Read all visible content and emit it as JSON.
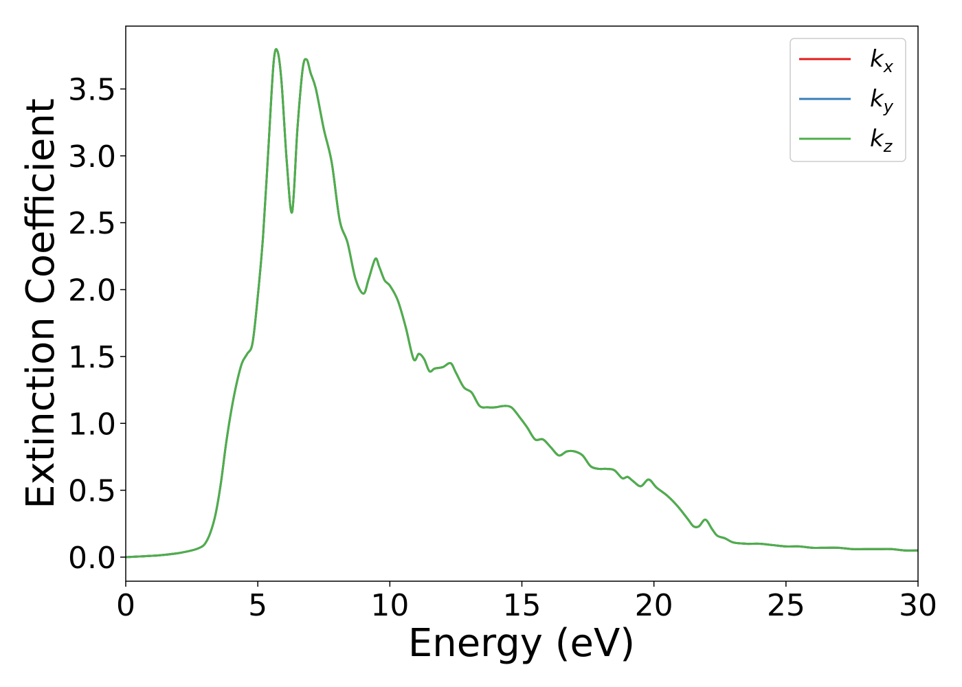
{
  "chart_data": {
    "type": "line",
    "title": "",
    "xlabel": "Energy (eV)",
    "ylabel": "Extinction Coefficient",
    "xlim": [
      0,
      30
    ],
    "ylim": [
      -0.18,
      3.97
    ],
    "xticks": [
      0,
      5,
      10,
      15,
      20,
      25,
      30
    ],
    "xtick_labels": [
      "0",
      "5",
      "10",
      "15",
      "20",
      "25",
      "30"
    ],
    "yticks": [
      0.0,
      0.5,
      1.0,
      1.5,
      2.0,
      2.5,
      3.0,
      3.5
    ],
    "ytick_labels": [
      "0.0",
      "0.5",
      "1.0",
      "1.5",
      "2.0",
      "2.5",
      "3.0",
      "3.5"
    ],
    "grid": false,
    "legend_position": "top-right",
    "series": [
      {
        "name": "k_x",
        "label_base": "k",
        "label_sub": "x",
        "color": "#e41a1c"
      },
      {
        "name": "k_y",
        "label_base": "k",
        "label_sub": "y",
        "color": "#377eb8"
      },
      {
        "name": "k_z",
        "label_base": "k",
        "label_sub": "z",
        "color": "#4daf4a"
      }
    ],
    "x": [
      0,
      0.5,
      1.0,
      1.5,
      2.0,
      2.5,
      2.8,
      3.0,
      3.2,
      3.4,
      3.6,
      3.8,
      4.0,
      4.2,
      4.4,
      4.6,
      4.8,
      5.0,
      5.2,
      5.4,
      5.6,
      5.75,
      5.9,
      6.1,
      6.3,
      6.5,
      6.7,
      6.85,
      7.0,
      7.2,
      7.5,
      7.8,
      8.1,
      8.4,
      8.7,
      9.0,
      9.2,
      9.45,
      9.6,
      9.8,
      10.0,
      10.3,
      10.6,
      10.9,
      11.1,
      11.3,
      11.5,
      11.7,
      12.0,
      12.3,
      12.5,
      12.8,
      13.1,
      13.4,
      13.7,
      14.0,
      14.3,
      14.6,
      14.9,
      15.2,
      15.5,
      15.8,
      16.1,
      16.4,
      16.7,
      17.0,
      17.3,
      17.6,
      17.9,
      18.2,
      18.5,
      18.8,
      19.0,
      19.2,
      19.5,
      19.8,
      20.1,
      20.5,
      20.9,
      21.3,
      21.5,
      21.7,
      21.95,
      22.2,
      22.4,
      22.7,
      23.0,
      23.5,
      24.0,
      24.5,
      25.0,
      25.5,
      26.0,
      26.5,
      27.0,
      27.5,
      28.0,
      28.5,
      29.0,
      29.5,
      30.0
    ],
    "y": [
      0.0,
      0.005,
      0.01,
      0.018,
      0.03,
      0.05,
      0.07,
      0.1,
      0.18,
      0.32,
      0.55,
      0.85,
      1.1,
      1.3,
      1.45,
      1.52,
      1.6,
      1.95,
      2.4,
      3.05,
      3.7,
      3.78,
      3.55,
      2.95,
      2.58,
      3.2,
      3.65,
      3.72,
      3.62,
      3.5,
      3.2,
      2.95,
      2.52,
      2.35,
      2.08,
      1.97,
      2.08,
      2.23,
      2.17,
      2.07,
      2.03,
      1.92,
      1.72,
      1.48,
      1.52,
      1.48,
      1.39,
      1.41,
      1.42,
      1.45,
      1.38,
      1.27,
      1.23,
      1.13,
      1.12,
      1.12,
      1.13,
      1.12,
      1.05,
      0.97,
      0.88,
      0.88,
      0.82,
      0.76,
      0.79,
      0.79,
      0.76,
      0.68,
      0.66,
      0.66,
      0.65,
      0.59,
      0.6,
      0.57,
      0.53,
      0.58,
      0.52,
      0.46,
      0.38,
      0.28,
      0.23,
      0.23,
      0.28,
      0.21,
      0.16,
      0.14,
      0.11,
      0.1,
      0.1,
      0.09,
      0.08,
      0.08,
      0.07,
      0.07,
      0.07,
      0.06,
      0.06,
      0.06,
      0.06,
      0.05,
      0.05
    ]
  }
}
